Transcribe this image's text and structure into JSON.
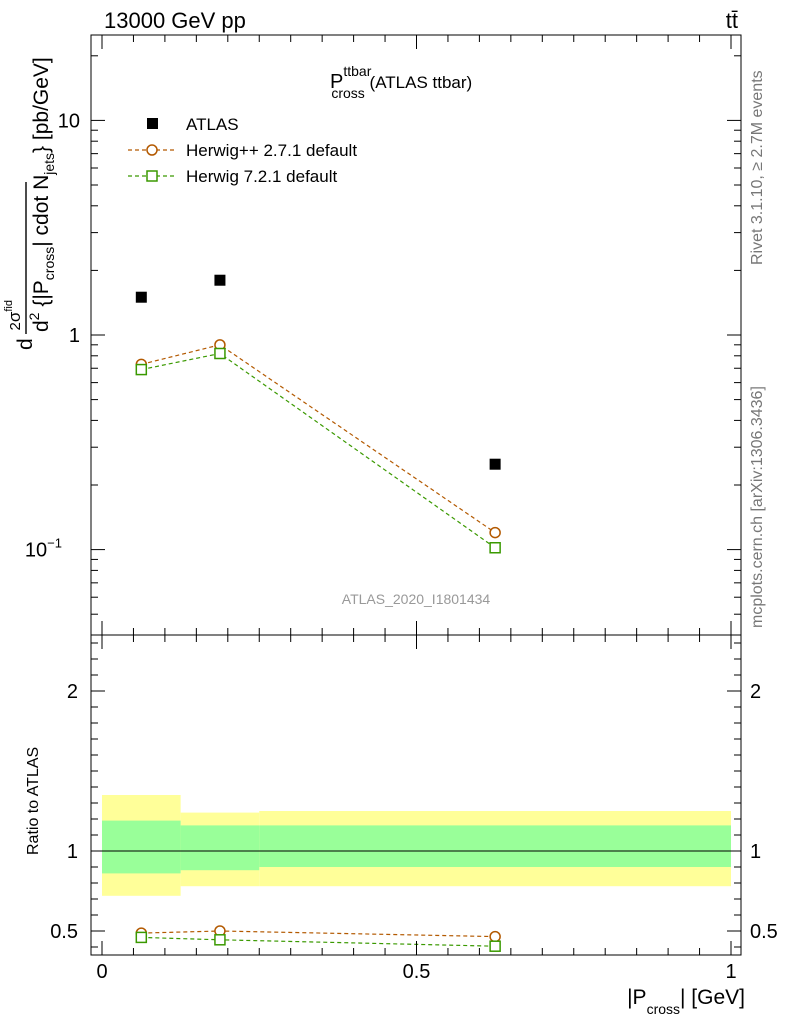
{
  "header": {
    "left": "13000 GeV pp",
    "right": "tt̄"
  },
  "side": {
    "rivet": "Rivet 3.1.10, ≥ 2.7M events",
    "mcplots": "mcplots.cern.ch [arXiv:1306.3436]"
  },
  "chart_data": [
    {
      "type": "line",
      "title_main": "P",
      "title_sup": "ttbar",
      "title_sub": "cross",
      "title_rest": " (ATLAS ttbar)",
      "watermark": "ATLAS_2020_I1801434",
      "ylabel": "d²σ^fid / d²{|P_cross| cdot N_jets} [pb/GeV]",
      "yscale": "log",
      "ylim": [
        0.04,
        25
      ],
      "xlim": [
        0,
        1
      ],
      "y_ticks": [
        "10",
        "1",
        "10⁻¹"
      ],
      "x": [
        0.0625,
        0.1875,
        0.625
      ],
      "series": [
        {
          "name": "ATLAS",
          "values": [
            1.5,
            1.8,
            0.25
          ],
          "color": "#000000",
          "marker": "square-filled"
        },
        {
          "name": "Herwig++ 2.7.1 default",
          "values": [
            0.73,
            0.9,
            0.12
          ],
          "color": "#b35900",
          "marker": "circle-open"
        },
        {
          "name": "Herwig 7.2.1 default",
          "values": [
            0.69,
            0.82,
            0.102
          ],
          "color": "#3a9900",
          "marker": "square-open"
        }
      ]
    },
    {
      "type": "line",
      "ylabel": "Ratio to ATLAS",
      "xlabel": "|P_cross| [GeV]",
      "ylim": [
        0.35,
        2.35
      ],
      "xlim": [
        0,
        1
      ],
      "y_ticks": [
        "2",
        "1",
        "0.5"
      ],
      "x_ticks": [
        "0",
        "0.5",
        "1"
      ],
      "bands": [
        {
          "x": [
            0.0,
            0.125
          ],
          "inner": [
            0.86,
            1.19
          ],
          "outer": [
            0.72,
            1.35
          ]
        },
        {
          "x": [
            0.125,
            0.25
          ],
          "inner": [
            0.88,
            1.16
          ],
          "outer": [
            0.78,
            1.24
          ]
        },
        {
          "x": [
            0.25,
            1.0
          ],
          "inner": [
            0.9,
            1.16
          ],
          "outer": [
            0.78,
            1.25
          ]
        }
      ],
      "x": [
        0.0625,
        0.1875,
        0.625
      ],
      "series": [
        {
          "name": "Herwig++ 2.7.1 default",
          "values": [
            0.487,
            0.5,
            0.465
          ],
          "errors": [
            0.02,
            0.02,
            0.025
          ],
          "color": "#b35900"
        },
        {
          "name": "Herwig 7.2.1 default",
          "values": [
            0.46,
            0.445,
            0.405
          ],
          "errors": [
            0.02,
            0.015,
            0.01
          ],
          "color": "#3a9900"
        }
      ]
    }
  ]
}
